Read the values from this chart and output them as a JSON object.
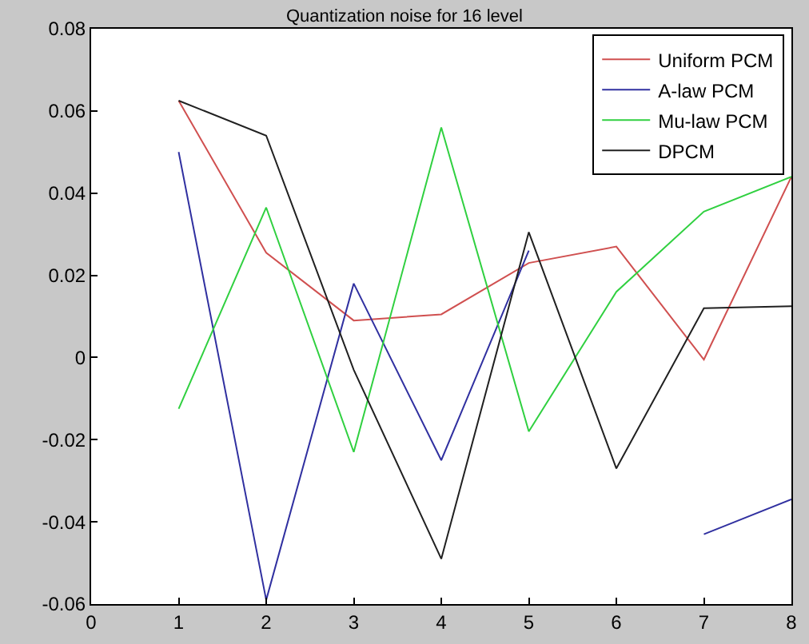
{
  "chart_data": {
    "type": "line",
    "title": "Quantization noise for 16 level",
    "x": [
      1,
      2,
      3,
      4,
      5,
      6,
      7,
      8
    ],
    "series": [
      {
        "name": "Uniform PCM",
        "color": "#d05050",
        "values": [
          0.0625,
          0.0255,
          0.009,
          0.0105,
          0.023,
          0.027,
          -0.0005,
          0.044
        ]
      },
      {
        "name": "A-law PCM",
        "color": "#3030a0",
        "values": [
          0.05,
          -0.059,
          0.018,
          -0.025,
          0.026,
          null,
          -0.043,
          -0.0345
        ]
      },
      {
        "name": "Mu-law PCM",
        "color": "#30d040",
        "values": [
          -0.0125,
          0.0365,
          -0.023,
          0.056,
          -0.018,
          0.016,
          0.0355,
          0.044
        ]
      },
      {
        "name": "DPCM",
        "color": "#202020",
        "values": [
          0.0625,
          0.054,
          -0.003,
          -0.049,
          0.0305,
          -0.027,
          0.012,
          0.0125
        ]
      }
    ],
    "xlim": [
      0,
      8
    ],
    "xticks": [
      0,
      1,
      2,
      3,
      4,
      5,
      6,
      7,
      8
    ],
    "ylim": [
      -0.06,
      0.08
    ],
    "yticks": [
      {
        "value": -0.06,
        "label": "-0.06"
      },
      {
        "value": -0.04,
        "label": "-0.04"
      },
      {
        "value": -0.02,
        "label": "-0.02"
      },
      0,
      {
        "value": 0.02,
        "label": "0.02"
      },
      {
        "value": 0.04,
        "label": "0.04"
      },
      {
        "value": 0.06,
        "label": "0.06"
      },
      {
        "value": 0.08,
        "label": "0.08"
      }
    ],
    "grid": false,
    "legend": "top right",
    "marker": "none",
    "line_style": "solid"
  }
}
